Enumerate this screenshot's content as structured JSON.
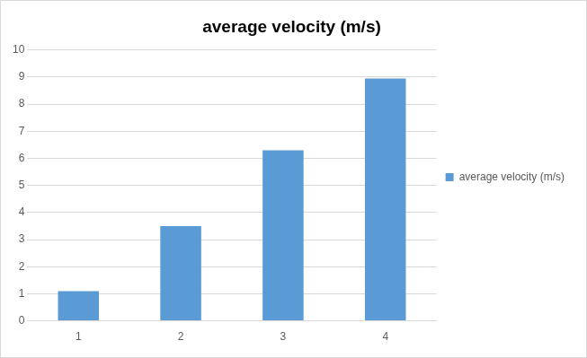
{
  "chart_data": {
    "type": "bar",
    "title": "average velocity (m/s)",
    "categories": [
      "1",
      "2",
      "3",
      "4"
    ],
    "series": [
      {
        "name": "average velocity (m/s)",
        "color": "#5b9bd5",
        "values": [
          1.1,
          3.5,
          6.3,
          8.95
        ]
      }
    ],
    "ylim": [
      0,
      10
    ],
    "yticks": [
      0,
      1,
      2,
      3,
      4,
      5,
      6,
      7,
      8,
      9,
      10
    ],
    "grid": true,
    "legend": "right"
  }
}
